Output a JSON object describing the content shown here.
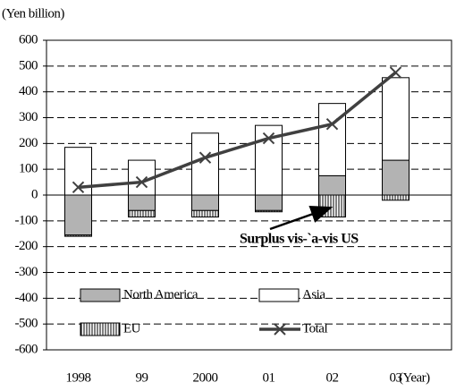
{
  "chart_data": {
    "type": "bar",
    "stacked": true,
    "y_unit": "(Yen billion)",
    "x_unit": "(Year)",
    "annotation": "Surplus vis-`a-vis US",
    "categories": [
      "1998",
      "99",
      "2000",
      "01",
      "02",
      "03"
    ],
    "ylim": [
      -600,
      600
    ],
    "yticks": [
      -600,
      -500,
      -400,
      -300,
      -200,
      -100,
      0,
      100,
      200,
      300,
      400,
      500,
      600
    ],
    "grid": true,
    "grid_style": "dashed",
    "series": [
      {
        "name": "North America",
        "color": "#b3b3b3",
        "values": [
          -155,
          -60,
          -60,
          -60,
          75,
          135
        ]
      },
      {
        "name": "Asia",
        "color": "#ffffff",
        "values": [
          185,
          135,
          240,
          270,
          280,
          320
        ]
      },
      {
        "name": "EU",
        "color": "#000000",
        "hatch": "vertical",
        "values": [
          -5,
          -25,
          -25,
          -5,
          -85,
          -20
        ]
      },
      {
        "name": "Total",
        "type": "line",
        "marker": "x",
        "color": "#404040",
        "values": [
          30,
          50,
          145,
          220,
          275,
          475
        ]
      }
    ]
  }
}
